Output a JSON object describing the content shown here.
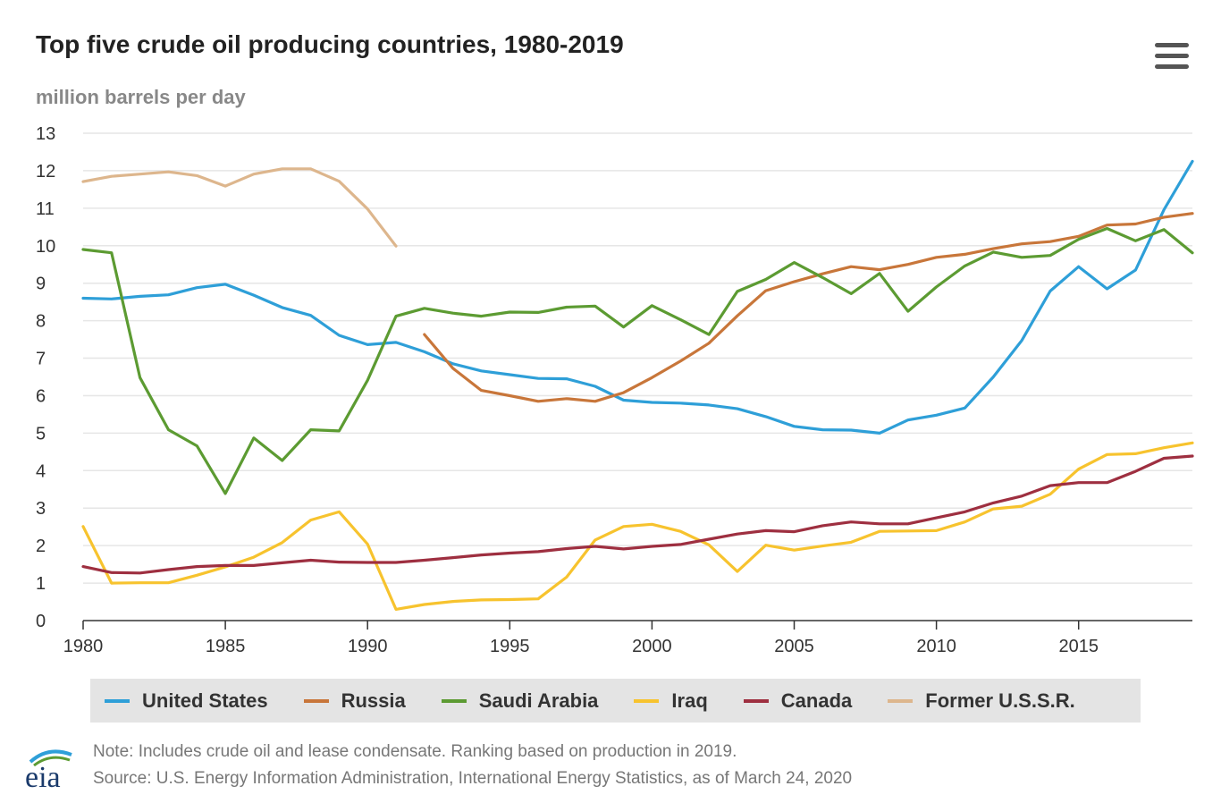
{
  "title": "Top five crude oil producing countries, 1980-2019",
  "subtitle": "million barrels per day",
  "menu_icon": "hamburger-menu-icon",
  "logo_text": "eia",
  "footer": {
    "note": "Note: Includes crude oil and lease condensate. Ranking based on production in 2019.",
    "source": "Source: U.S. Energy Information Administration, International Energy Statistics, as of March 24, 2020"
  },
  "chart_data": {
    "type": "line",
    "title": "Top five crude oil producing countries, 1980-2019",
    "ylabel": "million barrels per day",
    "xlabel": "",
    "xlim": [
      1980,
      2019
    ],
    "ylim": [
      0,
      13
    ],
    "yticks": [
      "0",
      "1",
      "2",
      "3",
      "4",
      "5",
      "6",
      "7",
      "8",
      "9",
      "10",
      "11",
      "12",
      "13"
    ],
    "xticks": [
      "1980",
      "1985",
      "1990",
      "1995",
      "2000",
      "2005",
      "2010",
      "2015"
    ],
    "grid": true,
    "legend_position": "bottom",
    "x": [
      1980,
      1981,
      1982,
      1983,
      1984,
      1985,
      1986,
      1987,
      1988,
      1989,
      1990,
      1991,
      1992,
      1993,
      1994,
      1995,
      1996,
      1997,
      1998,
      1999,
      2000,
      2001,
      2002,
      2003,
      2004,
      2005,
      2006,
      2007,
      2008,
      2009,
      2010,
      2011,
      2012,
      2013,
      2014,
      2015,
      2016,
      2017,
      2018,
      2019
    ],
    "series": [
      {
        "name": "United States",
        "color": "#2e9fd8",
        "values": [
          8.6,
          8.58,
          8.65,
          8.69,
          8.88,
          8.97,
          8.68,
          8.35,
          8.14,
          7.61,
          7.36,
          7.42,
          7.17,
          6.85,
          6.66,
          6.56,
          6.46,
          6.45,
          6.25,
          5.88,
          5.82,
          5.8,
          5.75,
          5.65,
          5.44,
          5.18,
          5.09,
          5.08,
          5.0,
          5.35,
          5.48,
          5.67,
          6.5,
          7.47,
          8.79,
          9.44,
          8.85,
          9.35,
          10.96,
          12.25
        ]
      },
      {
        "name": "Russia",
        "color": "#c8763a",
        "values": [
          null,
          null,
          null,
          null,
          null,
          null,
          null,
          null,
          null,
          null,
          null,
          null,
          7.63,
          6.73,
          6.14,
          6.0,
          5.85,
          5.92,
          5.85,
          6.08,
          6.48,
          6.92,
          7.4,
          8.13,
          8.8,
          9.04,
          9.25,
          9.44,
          9.36,
          9.5,
          9.69,
          9.77,
          9.92,
          10.05,
          10.11,
          10.25,
          10.55,
          10.58,
          10.76,
          10.86
        ]
      },
      {
        "name": "Saudi Arabia",
        "color": "#5c9b32",
        "values": [
          9.9,
          9.81,
          6.48,
          5.09,
          4.66,
          3.39,
          4.87,
          4.27,
          5.09,
          5.06,
          6.41,
          8.12,
          8.33,
          8.2,
          8.12,
          8.23,
          8.22,
          8.36,
          8.39,
          7.83,
          8.4,
          8.03,
          7.63,
          8.78,
          9.1,
          9.55,
          9.15,
          8.72,
          9.26,
          8.25,
          8.9,
          9.46,
          9.83,
          9.69,
          9.74,
          10.17,
          10.46,
          10.13,
          10.43,
          9.81
        ]
      },
      {
        "name": "Iraq",
        "color": "#f7c32e",
        "values": [
          2.51,
          1.0,
          1.01,
          1.01,
          1.21,
          1.43,
          1.69,
          2.08,
          2.68,
          2.9,
          2.04,
          0.3,
          0.43,
          0.51,
          0.55,
          0.56,
          0.58,
          1.16,
          2.15,
          2.51,
          2.57,
          2.38,
          2.02,
          1.31,
          2.01,
          1.88,
          1.99,
          2.09,
          2.38,
          2.39,
          2.4,
          2.63,
          2.98,
          3.05,
          3.37,
          4.04,
          4.43,
          4.45,
          4.61,
          4.74
        ]
      },
      {
        "name": "Canada",
        "color": "#9e2f40",
        "values": [
          1.44,
          1.28,
          1.27,
          1.36,
          1.44,
          1.47,
          1.47,
          1.54,
          1.61,
          1.56,
          1.55,
          1.55,
          1.61,
          1.68,
          1.75,
          1.8,
          1.84,
          1.92,
          1.98,
          1.91,
          1.98,
          2.03,
          2.17,
          2.31,
          2.4,
          2.37,
          2.53,
          2.63,
          2.58,
          2.58,
          2.74,
          2.9,
          3.14,
          3.32,
          3.6,
          3.68,
          3.68,
          3.98,
          4.33,
          4.39
        ]
      },
      {
        "name": "Former U.S.S.R.",
        "color": "#ddb68d",
        "values": [
          11.71,
          11.85,
          11.91,
          11.97,
          11.87,
          11.59,
          11.91,
          12.05,
          12.05,
          11.72,
          10.98,
          9.99,
          null,
          null,
          null,
          null,
          null,
          null,
          null,
          null,
          null,
          null,
          null,
          null,
          null,
          null,
          null,
          null,
          null,
          null,
          null,
          null,
          null,
          null,
          null,
          null,
          null,
          null,
          null,
          null
        ]
      }
    ]
  }
}
